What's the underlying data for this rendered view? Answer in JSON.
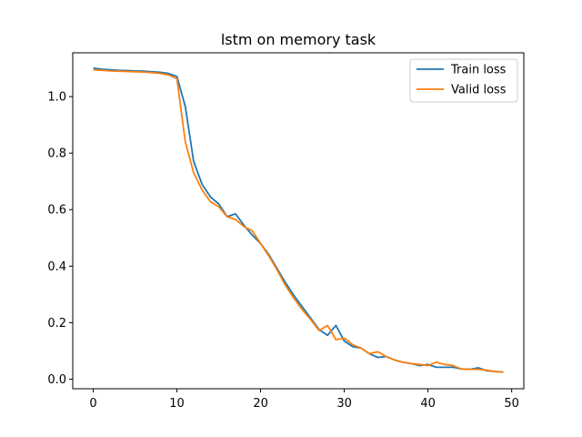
{
  "chart_data": {
    "type": "line",
    "title": "lstm on memory task",
    "xlabel": "",
    "ylabel": "",
    "xlim": [
      -2.45,
      51.45
    ],
    "ylim": [
      -0.034,
      1.155
    ],
    "xticks": [
      0,
      10,
      20,
      30,
      40,
      50
    ],
    "yticks": [
      0.0,
      0.2,
      0.4,
      0.6,
      0.8,
      1.0
    ],
    "xtick_labels": [
      "0",
      "10",
      "20",
      "30",
      "40",
      "50"
    ],
    "ytick_labels": [
      "0.0",
      "0.2",
      "0.4",
      "0.6",
      "0.8",
      "1.0"
    ],
    "grid": false,
    "legend_position": "top-right",
    "x": [
      0,
      1,
      2,
      3,
      4,
      5,
      6,
      7,
      8,
      9,
      10,
      11,
      12,
      13,
      14,
      15,
      16,
      17,
      18,
      19,
      20,
      21,
      22,
      23,
      24,
      25,
      26,
      27,
      28,
      29,
      30,
      31,
      32,
      33,
      34,
      35,
      36,
      37,
      38,
      39,
      40,
      41,
      42,
      43,
      44,
      45,
      46,
      47,
      48,
      49
    ],
    "series": [
      {
        "name": "Train loss",
        "color": "#1f77b4",
        "values": [
          1.101,
          1.097,
          1.095,
          1.093,
          1.092,
          1.091,
          1.09,
          1.088,
          1.086,
          1.082,
          1.071,
          0.965,
          0.77,
          0.69,
          0.645,
          0.62,
          0.575,
          0.585,
          0.545,
          0.51,
          0.48,
          0.44,
          0.39,
          0.34,
          0.295,
          0.255,
          0.215,
          0.175,
          0.155,
          0.19,
          0.135,
          0.115,
          0.11,
          0.09,
          0.077,
          0.08,
          0.068,
          0.06,
          0.055,
          0.048,
          0.052,
          0.042,
          0.042,
          0.042,
          0.036,
          0.035,
          0.04,
          0.03,
          0.027,
          0.025
        ]
      },
      {
        "name": "Valid loss",
        "color": "#ff7f0e",
        "values": [
          1.095,
          1.093,
          1.091,
          1.09,
          1.089,
          1.088,
          1.087,
          1.085,
          1.082,
          1.077,
          1.063,
          0.84,
          0.73,
          0.67,
          0.628,
          0.61,
          0.575,
          0.565,
          0.54,
          0.525,
          0.48,
          0.435,
          0.385,
          0.33,
          0.285,
          0.245,
          0.21,
          0.172,
          0.19,
          0.14,
          0.145,
          0.122,
          0.11,
          0.09,
          0.097,
          0.08,
          0.068,
          0.06,
          0.055,
          0.052,
          0.048,
          0.06,
          0.052,
          0.048,
          0.036,
          0.035,
          0.035,
          0.032,
          0.027,
          0.025
        ]
      }
    ]
  }
}
